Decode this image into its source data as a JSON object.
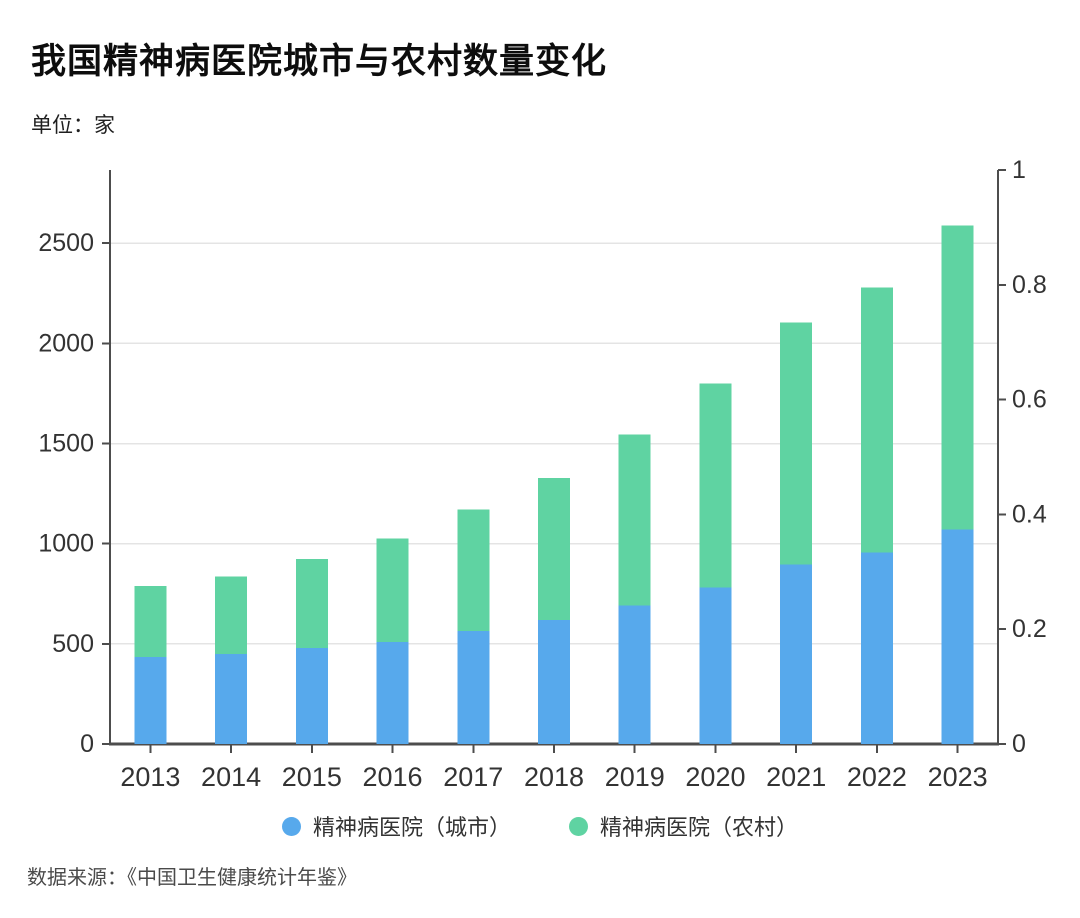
{
  "chart_data": {
    "type": "bar",
    "stacked": true,
    "title": "我国精神病医院城市与农村数量变化",
    "unit_label": "单位：家",
    "source": "数据来源：《中国卫生健康统计年鉴》",
    "categories": [
      "2013",
      "2014",
      "2015",
      "2016",
      "2017",
      "2018",
      "2019",
      "2020",
      "2021",
      "2022",
      "2023"
    ],
    "series": [
      {
        "name": "精神病医院（城市）",
        "color": "#57a9ec",
        "values": [
          435,
          450,
          480,
          510,
          565,
          618,
          692,
          782,
          895,
          955,
          1072
        ]
      },
      {
        "name": "精神病医院（农村）",
        "color": "#5fd3a2",
        "values": [
          354,
          386,
          444,
          516,
          606,
          711,
          853,
          1018,
          1209,
          1325,
          1516
        ]
      }
    ],
    "totals": [
      789,
      836,
      924,
      1026,
      1171,
      1329,
      1545,
      1800,
      2104,
      2280,
      2588
    ],
    "left_axis": {
      "ticks": [
        0,
        500,
        1000,
        1500,
        2000,
        2500
      ],
      "tick_value_at_top": 2865
    },
    "right_axis": {
      "ticks": [
        0,
        0.2,
        0.4,
        0.6,
        0.8,
        1
      ],
      "min": 0,
      "max": 1
    },
    "grid": true,
    "legend_position": "bottom",
    "colors": {
      "axis": "#4d4d4d",
      "gridline": "#e4e4e4",
      "tick_label": "#333333",
      "background": "#ffffff"
    }
  }
}
